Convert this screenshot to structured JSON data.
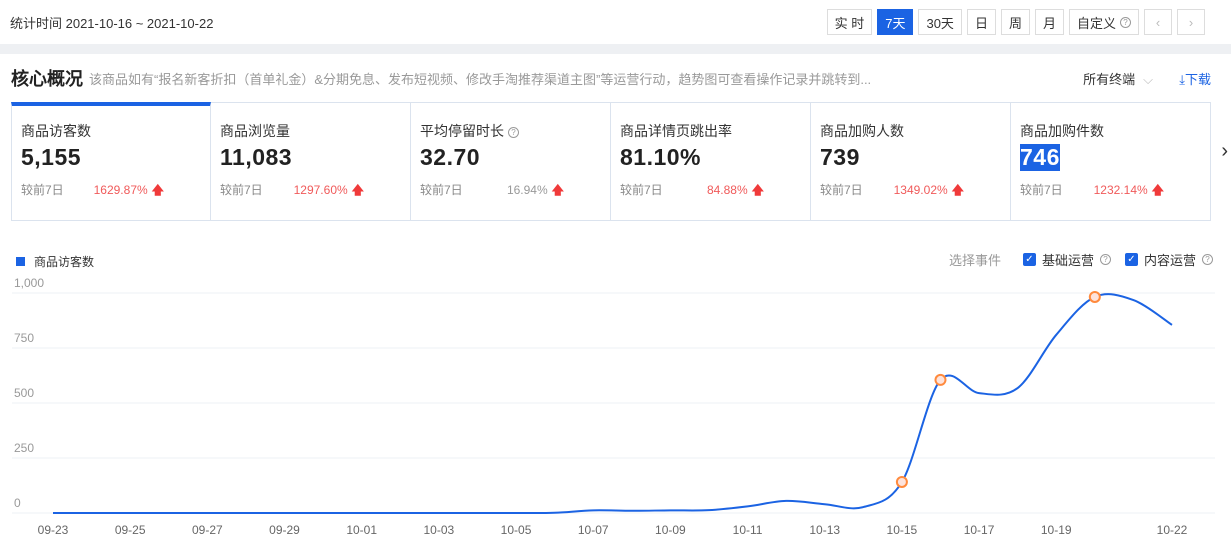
{
  "topbar": {
    "period": "统计时间 2021-10-16 ~ 2021-10-22",
    "buttons": [
      "实 时",
      "7天",
      "30天",
      "日",
      "周",
      "月",
      "自定义"
    ],
    "active": "7天",
    "prev": "‹",
    "next": "›"
  },
  "overview": {
    "title": "核心概况",
    "desc": "该商品如有“报名新客折扣（首单礼金）&分期免息、发布短视频、修改手淘推荐渠道主图”等运营行动，趋势图可查看操作记录并跳转到...",
    "terminal": "所有终端",
    "download": "下载"
  },
  "cards": [
    {
      "label": "商品访客数",
      "value": "5,155",
      "cmp": "较前7日",
      "pct": "1629.87%"
    },
    {
      "label": "商品浏览量",
      "value": "11,083",
      "cmp": "较前7日",
      "pct": "1297.60%"
    },
    {
      "label": "平均停留时长",
      "value": "32.70",
      "cmp": "较前7日",
      "pct": "16.94%",
      "help": true
    },
    {
      "label": "商品详情页跳出率",
      "value": "81.10%",
      "cmp": "较前7日",
      "pct": "84.88%"
    },
    {
      "label": "商品加购人数",
      "value": "739",
      "cmp": "较前7日",
      "pct": "1349.02%"
    },
    {
      "label": "商品加购件数",
      "value": "746",
      "cmp": "较前7日",
      "pct": "1232.14%",
      "selected": true
    }
  ],
  "events": {
    "label": "选择事件",
    "options": [
      "基础运营",
      "内容运营"
    ],
    "checked": [
      true,
      true
    ]
  },
  "colors": {
    "accent": "#1b63e3",
    "up": "#f03a3a",
    "marker": "#ff8a3d"
  },
  "chart_data": {
    "type": "line",
    "series": [
      {
        "name": "商品访客数",
        "values": [
          0,
          0,
          0,
          0,
          0,
          0,
          0,
          0,
          0,
          0,
          0,
          0,
          0,
          1,
          12,
          10,
          12,
          13,
          30,
          55,
          40,
          27,
          141,
          605,
          545,
          568,
          810,
          982,
          968,
          855
        ]
      }
    ],
    "x": [
      "09-23",
      "09-24",
      "09-25",
      "09-26",
      "09-27",
      "09-28",
      "09-29",
      "09-30",
      "10-01",
      "10-02",
      "10-03",
      "10-04",
      "10-05",
      "10-06",
      "10-07",
      "10-08",
      "10-09",
      "10-10",
      "10-11",
      "10-12",
      "10-13",
      "10-14",
      "10-15",
      "10-16",
      "10-17",
      "10-18",
      "10-19",
      "10-20",
      "10-21",
      "10-22"
    ],
    "xticks": [
      "09-23",
      "09-25",
      "09-27",
      "09-29",
      "10-01",
      "10-03",
      "10-05",
      "10-07",
      "10-09",
      "10-11",
      "10-13",
      "10-15",
      "10-17",
      "10-19",
      "10-22"
    ],
    "yticks": [
      "0",
      "250",
      "500",
      "750",
      "1,000"
    ],
    "ylim": [
      0,
      1000
    ],
    "markers": [
      "10-15",
      "10-16",
      "10-20"
    ],
    "grid": true,
    "legend": "top-left"
  }
}
